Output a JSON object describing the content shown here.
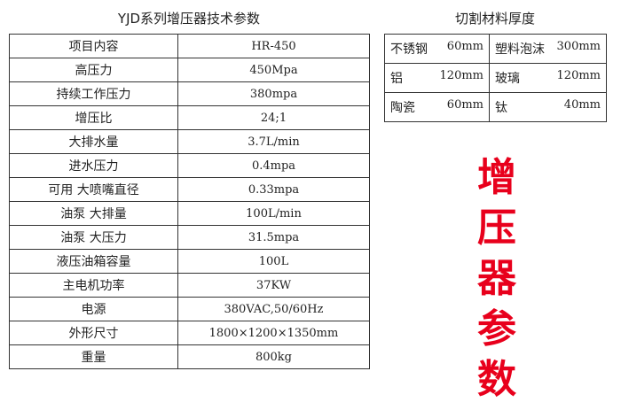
{
  "spec_table": {
    "title": "YJD系列增压器技术参数",
    "rows": [
      [
        "项目内容",
        "HR-450"
      ],
      [
        "高压力",
        "450Mpa"
      ],
      [
        "持续工作压力",
        "380mpa"
      ],
      [
        "增压比",
        "24;1"
      ],
      [
        "大排水量",
        "3.7L/min"
      ],
      [
        "进水压力",
        "0.4mpa"
      ],
      [
        "可用 大喷嘴直径",
        "0.33mpa"
      ],
      [
        "油泵 大排量",
        "100L/min"
      ],
      [
        "油泵 大压力",
        "31.5mpa"
      ],
      [
        "液压油箱容量",
        "100L"
      ],
      [
        "主电机功率",
        "37KW"
      ],
      [
        "电源",
        "380VAC,50/60Hz"
      ],
      [
        "外形尺寸",
        "1800×1200×1350mm"
      ],
      [
        "重量",
        "800kg"
      ]
    ]
  },
  "cut_table": {
    "title": "切割材料厚度",
    "rows": [
      [
        {
          "material": "不锈钢",
          "value": "60mm"
        },
        {
          "material": "塑料泡沫",
          "value": "300mm"
        }
      ],
      [
        {
          "material": "铝",
          "value": "120mm"
        },
        {
          "material": "玻璃",
          "value": "120mm"
        }
      ],
      [
        {
          "material": "陶瓷",
          "value": "60mm"
        },
        {
          "material": "钛",
          "value": "40mm"
        }
      ]
    ]
  },
  "banner": {
    "chars": [
      "增",
      "压",
      "器",
      "参",
      "数"
    ],
    "color": "#e8001c"
  }
}
